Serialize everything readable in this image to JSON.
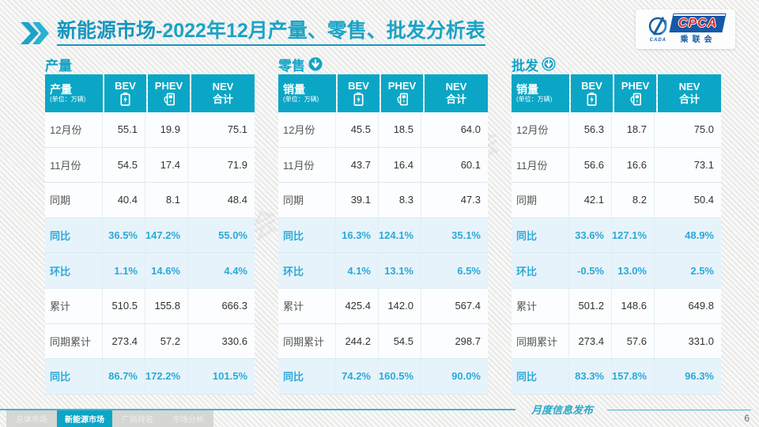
{
  "slide": {
    "title_main": "新能源市场",
    "title_rest": "-2022年12月产量、零售、批发分析表",
    "footer_script": "月度信息发布",
    "page_number": "6",
    "watermark": "CPCA 乘联会",
    "colors": {
      "accent": "#0ba6c6",
      "title": "#1697be",
      "data_blue": "#2ba9d8"
    }
  },
  "logo": {
    "cpca": "CPCA",
    "cada": "CADA",
    "cn_name": "乘联会"
  },
  "footer_tabs": [
    {
      "label": "总体市场",
      "active": false
    },
    {
      "label": "新能源市场",
      "active": true
    },
    {
      "label": "厂商排名",
      "active": false
    },
    {
      "label": "市场分析",
      "active": false
    }
  ],
  "tables": [
    {
      "section_title": "产量",
      "arrow": "none",
      "header": {
        "title": "产量",
        "unit": "(单位：万辆)",
        "bev": "BEV",
        "phev": "PHEV",
        "nev_line1": "NEV",
        "nev_line2": "合计"
      },
      "rows": [
        {
          "label": "12月份",
          "bev": "55.1",
          "phev": "19.9",
          "nev": "75.1",
          "highlight": false
        },
        {
          "label": "11月份",
          "bev": "54.5",
          "phev": "17.4",
          "nev": "71.9",
          "highlight": false
        },
        {
          "label": "同期",
          "bev": "40.4",
          "phev": "8.1",
          "nev": "48.4",
          "highlight": false
        },
        {
          "label": "同比",
          "bev": "36.5%",
          "phev": "147.2%",
          "nev": "55.0%",
          "highlight": true
        },
        {
          "label": "环比",
          "bev": "1.1%",
          "phev": "14.6%",
          "nev": "4.4%",
          "highlight": true
        },
        {
          "label": "累计",
          "bev": "510.5",
          "phev": "155.8",
          "nev": "666.3",
          "highlight": false
        },
        {
          "label": "同期累计",
          "bev": "273.4",
          "phev": "57.2",
          "nev": "330.6",
          "highlight": false
        },
        {
          "label": "同比",
          "bev": "86.7%",
          "phev": "172.2%",
          "nev": "101.5%",
          "highlight": true
        }
      ]
    },
    {
      "section_title": "零售",
      "arrow": "solid",
      "header": {
        "title": "销量",
        "unit": "(单位：万辆)",
        "bev": "BEV",
        "phev": "PHEV",
        "nev_line1": "NEV",
        "nev_line2": "合计"
      },
      "rows": [
        {
          "label": "12月份",
          "bev": "45.5",
          "phev": "18.5",
          "nev": "64.0",
          "highlight": false
        },
        {
          "label": "11月份",
          "bev": "43.7",
          "phev": "16.4",
          "nev": "60.1",
          "highlight": false
        },
        {
          "label": "同期",
          "bev": "39.1",
          "phev": "8.3",
          "nev": "47.3",
          "highlight": false
        },
        {
          "label": "同比",
          "bev": "16.3%",
          "phev": "124.1%",
          "nev": "35.1%",
          "highlight": true
        },
        {
          "label": "环比",
          "bev": "4.1%",
          "phev": "13.1%",
          "nev": "6.5%",
          "highlight": true
        },
        {
          "label": "累计",
          "bev": "425.4",
          "phev": "142.0",
          "nev": "567.4",
          "highlight": false
        },
        {
          "label": "同期累计",
          "bev": "244.2",
          "phev": "54.5",
          "nev": "298.7",
          "highlight": false
        },
        {
          "label": "同比",
          "bev": "74.2%",
          "phev": "160.5%",
          "nev": "90.0%",
          "highlight": true
        }
      ]
    },
    {
      "section_title": "批发",
      "arrow": "ring",
      "header": {
        "title": "销量",
        "unit": "(单位：万辆)",
        "bev": "BEV",
        "phev": "PHEV",
        "nev_line1": "NEV",
        "nev_line2": "合计"
      },
      "rows": [
        {
          "label": "12月份",
          "bev": "56.3",
          "phev": "18.7",
          "nev": "75.0",
          "highlight": false
        },
        {
          "label": "11月份",
          "bev": "56.6",
          "phev": "16.6",
          "nev": "73.1",
          "highlight": false
        },
        {
          "label": "同期",
          "bev": "42.1",
          "phev": "8.2",
          "nev": "50.4",
          "highlight": false
        },
        {
          "label": "同比",
          "bev": "33.6%",
          "phev": "127.1%",
          "nev": "48.9%",
          "highlight": true
        },
        {
          "label": "环比",
          "bev": "-0.5%",
          "phev": "13.0%",
          "nev": "2.5%",
          "highlight": true
        },
        {
          "label": "累计",
          "bev": "501.2",
          "phev": "148.6",
          "nev": "649.8",
          "highlight": false
        },
        {
          "label": "同期累计",
          "bev": "273.4",
          "phev": "57.6",
          "nev": "331.0",
          "highlight": false
        },
        {
          "label": "同比",
          "bev": "83.3%",
          "phev": "157.8%",
          "nev": "96.3%",
          "highlight": true
        }
      ]
    }
  ]
}
